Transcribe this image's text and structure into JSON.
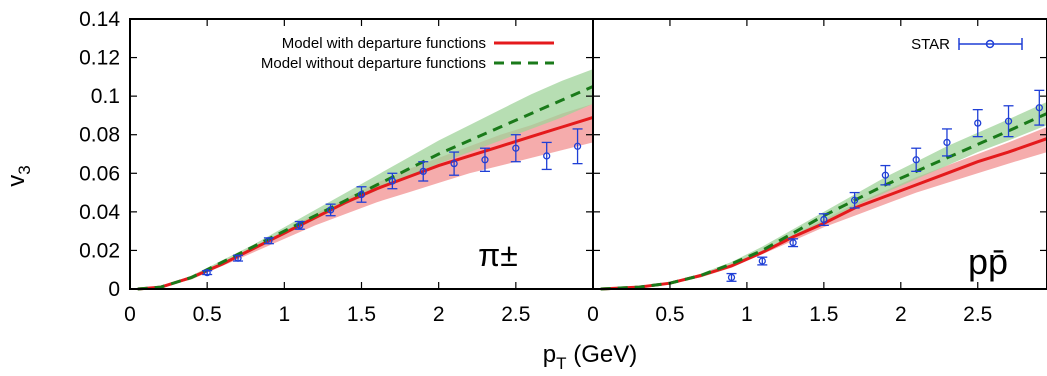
{
  "figure": {
    "xlabel": "p",
    "xlabel_sub": "T",
    "xlabel_unit": " (GeV)",
    "ylabel": "v",
    "ylabel_sub": "3"
  },
  "legend": {
    "with_label": "Model with departure functions",
    "without_label": "Model without departure functions",
    "star_label": "STAR"
  },
  "colors": {
    "with_line": "#e41a1c",
    "with_band": "#f4a3a3",
    "without_line": "#1a7a1a",
    "without_band": "#9fd39a",
    "data": "#1f3fd6"
  },
  "chart_data": [
    {
      "type": "line",
      "panel": "left",
      "particle_label": "π±",
      "xlim": [
        0,
        3.0
      ],
      "ylim": [
        0,
        0.14
      ],
      "xticks": [
        "0",
        "0.5",
        "1",
        "1.5",
        "2",
        "2.5"
      ],
      "xtick_values": [
        0,
        0.5,
        1,
        1.5,
        2,
        2.5
      ],
      "yticks": [
        "0",
        "0.02",
        "0.04",
        "0.06",
        "0.08",
        "0.1",
        "0.12",
        "0.14"
      ],
      "ytick_values": [
        0,
        0.02,
        0.04,
        0.06,
        0.08,
        0.1,
        0.12,
        0.14
      ],
      "x": [
        0.05,
        0.2,
        0.4,
        0.6,
        0.8,
        1.0,
        1.2,
        1.4,
        1.6,
        1.8,
        2.0,
        2.2,
        2.4,
        2.6,
        2.8,
        3.0
      ],
      "series": [
        {
          "name": "Model with departure functions",
          "style": "solid",
          "values": [
            0.0,
            0.001,
            0.006,
            0.013,
            0.021,
            0.029,
            0.037,
            0.045,
            0.052,
            0.058,
            0.064,
            0.069,
            0.074,
            0.079,
            0.084,
            0.089
          ],
          "band_low": [
            0.0,
            0.001,
            0.005,
            0.012,
            0.019,
            0.026,
            0.033,
            0.039,
            0.045,
            0.05,
            0.055,
            0.06,
            0.064,
            0.068,
            0.072,
            0.076
          ],
          "band_high": [
            0.0,
            0.001,
            0.007,
            0.014,
            0.022,
            0.03,
            0.039,
            0.047,
            0.055,
            0.062,
            0.068,
            0.074,
            0.08,
            0.085,
            0.091,
            0.096
          ]
        },
        {
          "name": "Model without departure functions",
          "style": "dashed",
          "values": [
            0.0,
            0.001,
            0.006,
            0.014,
            0.022,
            0.03,
            0.038,
            0.046,
            0.054,
            0.062,
            0.07,
            0.077,
            0.084,
            0.091,
            0.098,
            0.105
          ],
          "band_low": [
            0.0,
            0.001,
            0.005,
            0.013,
            0.021,
            0.028,
            0.036,
            0.044,
            0.051,
            0.058,
            0.065,
            0.071,
            0.077,
            0.083,
            0.089,
            0.096
          ],
          "band_high": [
            0.0,
            0.001,
            0.007,
            0.015,
            0.023,
            0.032,
            0.041,
            0.05,
            0.059,
            0.068,
            0.077,
            0.085,
            0.093,
            0.101,
            0.108,
            0.114
          ]
        }
      ],
      "points": {
        "name": "STAR",
        "x": [
          0.5,
          0.7,
          0.9,
          1.1,
          1.3,
          1.5,
          1.7,
          1.9,
          2.1,
          2.3,
          2.5,
          2.7,
          2.9
        ],
        "y": [
          0.0085,
          0.016,
          0.025,
          0.033,
          0.041,
          0.049,
          0.056,
          0.061,
          0.065,
          0.067,
          0.073,
          0.069,
          0.074
        ],
        "err": [
          0.001,
          0.0015,
          0.0015,
          0.002,
          0.003,
          0.004,
          0.004,
          0.005,
          0.006,
          0.006,
          0.007,
          0.007,
          0.009
        ]
      }
    },
    {
      "type": "line",
      "panel": "right",
      "particle_label": "pp̄",
      "xlim": [
        0,
        2.95
      ],
      "ylim": [
        0,
        0.14
      ],
      "xticks": [
        "0",
        "0.5",
        "1",
        "1.5",
        "2",
        "2.5"
      ],
      "xtick_values": [
        0,
        0.5,
        1,
        1.5,
        2,
        2.5
      ],
      "x": [
        0.05,
        0.3,
        0.5,
        0.7,
        0.9,
        1.1,
        1.3,
        1.5,
        1.7,
        1.9,
        2.1,
        2.3,
        2.5,
        2.7,
        2.95
      ],
      "series": [
        {
          "name": "Model with departure functions",
          "style": "solid",
          "values": [
            0.0,
            0.001,
            0.003,
            0.007,
            0.012,
            0.019,
            0.027,
            0.034,
            0.042,
            0.048,
            0.054,
            0.06,
            0.066,
            0.071,
            0.078
          ],
          "band_low": [
            0.0,
            0.001,
            0.003,
            0.006,
            0.011,
            0.018,
            0.025,
            0.032,
            0.038,
            0.044,
            0.05,
            0.055,
            0.06,
            0.065,
            0.071
          ],
          "band_high": [
            0.0,
            0.001,
            0.003,
            0.007,
            0.013,
            0.02,
            0.028,
            0.036,
            0.044,
            0.051,
            0.058,
            0.064,
            0.07,
            0.076,
            0.084
          ]
        },
        {
          "name": "Model without departure functions",
          "style": "dashed",
          "values": [
            0.0,
            0.001,
            0.003,
            0.007,
            0.013,
            0.02,
            0.029,
            0.038,
            0.046,
            0.054,
            0.061,
            0.068,
            0.075,
            0.082,
            0.091
          ],
          "band_low": [
            0.0,
            0.001,
            0.003,
            0.006,
            0.012,
            0.019,
            0.027,
            0.035,
            0.043,
            0.05,
            0.057,
            0.064,
            0.071,
            0.077,
            0.085
          ],
          "band_high": [
            0.0,
            0.001,
            0.003,
            0.008,
            0.014,
            0.022,
            0.031,
            0.04,
            0.049,
            0.058,
            0.066,
            0.074,
            0.081,
            0.088,
            0.097
          ]
        }
      ],
      "points": {
        "name": "STAR",
        "x": [
          0.9,
          1.1,
          1.3,
          1.5,
          1.7,
          1.9,
          2.1,
          2.3,
          2.5,
          2.7,
          2.9
        ],
        "y": [
          0.006,
          0.0145,
          0.024,
          0.036,
          0.046,
          0.059,
          0.067,
          0.076,
          0.086,
          0.087,
          0.094
        ],
        "err": [
          0.002,
          0.002,
          0.002,
          0.003,
          0.004,
          0.005,
          0.006,
          0.007,
          0.007,
          0.008,
          0.009
        ]
      }
    }
  ]
}
